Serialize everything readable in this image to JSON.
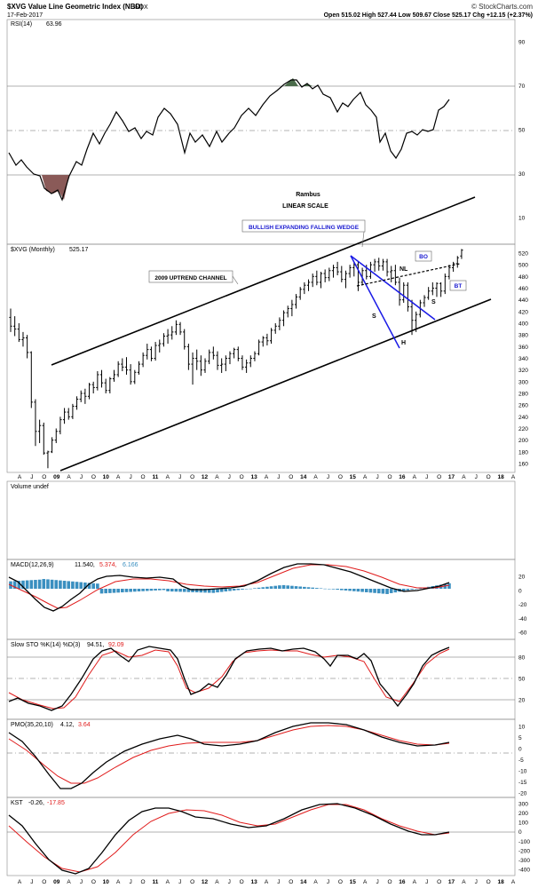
{
  "header": {
    "symbol_title": "$XVG Value Line Geometric Index (NBD)",
    "exchange": "INDX",
    "date": "17-Feb-2017",
    "quote": "Open 515.02  High 527.44  Low 509.67  Close 525.17  Chg +12.15 (+2.37%)",
    "quote_arrow": "▲",
    "brand": "© StockCharts.com"
  },
  "colors": {
    "price_bar": "#000000",
    "trendline": "#000000",
    "wedge": "#1a1ae6",
    "signal": "#e01b1b",
    "macd_hist": "#3a8fc0",
    "rsi_over": "#4a6b4a",
    "rsi_under": "#8a5a58",
    "grid": "#aaaaaa",
    "annotation_text": "#1a1ad0"
  },
  "panels": {
    "rsi": {
      "label": "RSI(14)",
      "value": "63.96",
      "ticks": [
        "90",
        "70",
        "50",
        "30",
        "10"
      ]
    },
    "price": {
      "label": "$XVG (Monthly)",
      "value": "525.17",
      "ticks": [
        "520",
        "500",
        "480",
        "460",
        "440",
        "420",
        "400",
        "380",
        "360",
        "340",
        "320",
        "300",
        "280",
        "260",
        "240",
        "220",
        "200",
        "180",
        "160"
      ]
    },
    "volume": {
      "label": "Volume undef"
    },
    "macd": {
      "label": "MACD(12,26,9)",
      "v1": "11.540,",
      "v2": "5.374,",
      "v3": "6.166",
      "ticks": [
        "20",
        "0",
        "-20",
        "-40",
        "-60"
      ]
    },
    "sto": {
      "label": "Slow STO %K(14) %D(3)",
      "v1": "94.51,",
      "v2": "92.09",
      "ticks": [
        "80",
        "50",
        "20"
      ]
    },
    "pmo": {
      "label": "PMO(35,20,10)",
      "v1": "4.12,",
      "v2": "3.64",
      "ticks": [
        "10",
        "5",
        "0",
        "-5",
        "-10",
        "-15",
        "-20"
      ]
    },
    "kst": {
      "label": "KST",
      "v1": "-0.26,",
      "v2": "-17.85",
      "ticks": [
        "300",
        "200",
        "100",
        "0",
        "-100",
        "-200",
        "-300",
        "-400"
      ]
    }
  },
  "annotations": {
    "rambus": "Rambus",
    "linear": "LINEAR SCALE",
    "wedge": "BULLISH EXPANDING FALLING WEDGE",
    "channel": "2009 UPTREND CHANNEL",
    "nl": "NL",
    "s_left": "S",
    "h": "H",
    "s_right": "S",
    "bo": "BO",
    "bt": "BT"
  },
  "x_axis_labels": [
    "A",
    "J",
    "O",
    "09",
    "A",
    "J",
    "O",
    "10",
    "A",
    "J",
    "O",
    "11",
    "A",
    "J",
    "O",
    "12",
    "A",
    "J",
    "O",
    "13",
    "A",
    "J",
    "O",
    "14",
    "A",
    "J",
    "O",
    "15",
    "A",
    "J",
    "O",
    "16",
    "A",
    "J",
    "O",
    "17",
    "A",
    "J",
    "O",
    "18",
    "A"
  ],
  "chart_data": {
    "type": "bar",
    "interval": "monthly",
    "x_start": "2008-04",
    "x_end": "2018-04",
    "price": {
      "ylim": [
        150,
        530
      ],
      "bars": [
        [
          410,
          425,
          385,
          395
        ],
        [
          395,
          412,
          378,
          390
        ],
        [
          390,
          400,
          368,
          372
        ],
        [
          372,
          385,
          360,
          375
        ],
        [
          375,
          380,
          340,
          350
        ],
        [
          350,
          352,
          255,
          265
        ],
        [
          265,
          270,
          190,
          215
        ],
        [
          215,
          235,
          195,
          225
        ],
        [
          225,
          230,
          175,
          178
        ],
        [
          178,
          182,
          152,
          180
        ],
        [
          180,
          205,
          178,
          200
        ],
        [
          200,
          220,
          195,
          215
        ],
        [
          215,
          240,
          210,
          235
        ],
        [
          235,
          255,
          228,
          248
        ],
        [
          248,
          255,
          235,
          240
        ],
        [
          240,
          262,
          236,
          258
        ],
        [
          258,
          275,
          252,
          270
        ],
        [
          270,
          285,
          265,
          280
        ],
        [
          280,
          288,
          262,
          275
        ],
        [
          275,
          298,
          270,
          295
        ],
        [
          295,
          300,
          280,
          290
        ],
        [
          290,
          318,
          285,
          312
        ],
        [
          312,
          320,
          290,
          298
        ],
        [
          298,
          305,
          280,
          285
        ],
        [
          285,
          308,
          280,
          305
        ],
        [
          305,
          320,
          300,
          312
        ],
        [
          312,
          335,
          308,
          330
        ],
        [
          330,
          340,
          318,
          325
        ],
        [
          325,
          342,
          312,
          320
        ],
        [
          320,
          330,
          295,
          300
        ],
        [
          300,
          320,
          296,
          316
        ],
        [
          316,
          335,
          312,
          330
        ],
        [
          330,
          350,
          325,
          345
        ],
        [
          345,
          365,
          338,
          355
        ],
        [
          355,
          360,
          335,
          340
        ],
        [
          340,
          368,
          336,
          362
        ],
        [
          362,
          372,
          350,
          365
        ],
        [
          365,
          383,
          360,
          378
        ],
        [
          378,
          390,
          365,
          380
        ],
        [
          380,
          395,
          372,
          385
        ],
        [
          385,
          405,
          380,
          398
        ],
        [
          398,
          402,
          380,
          385
        ],
        [
          385,
          390,
          355,
          360
        ],
        [
          360,
          365,
          320,
          330
        ],
        [
          330,
          350,
          295,
          340
        ],
        [
          340,
          355,
          320,
          335
        ],
        [
          335,
          345,
          310,
          320
        ],
        [
          320,
          340,
          315,
          335
        ],
        [
          335,
          355,
          330,
          350
        ],
        [
          350,
          360,
          338,
          345
        ],
        [
          345,
          352,
          320,
          328
        ],
        [
          328,
          340,
          315,
          330
        ],
        [
          330,
          345,
          318,
          340
        ],
        [
          340,
          352,
          330,
          348
        ],
        [
          348,
          358,
          340,
          355
        ],
        [
          355,
          360,
          335,
          340
        ],
        [
          340,
          345,
          320,
          325
        ],
        [
          325,
          338,
          315,
          332
        ],
        [
          332,
          345,
          325,
          340
        ],
        [
          340,
          352,
          335,
          348
        ],
        [
          348,
          372,
          345,
          368
        ],
        [
          368,
          378,
          360,
          375
        ],
        [
          375,
          382,
          362,
          370
        ],
        [
          370,
          392,
          365,
          388
        ],
        [
          388,
          400,
          382,
          395
        ],
        [
          395,
          410,
          388,
          405
        ],
        [
          405,
          422,
          395,
          418
        ],
        [
          418,
          430,
          410,
          425
        ],
        [
          425,
          440,
          412,
          432
        ],
        [
          432,
          450,
          425,
          445
        ],
        [
          445,
          462,
          440,
          458
        ],
        [
          458,
          470,
          450,
          465
        ],
        [
          465,
          475,
          455,
          470
        ],
        [
          470,
          485,
          462,
          480
        ],
        [
          480,
          490,
          465,
          470
        ],
        [
          470,
          488,
          460,
          485
        ],
        [
          485,
          492,
          470,
          478
        ],
        [
          478,
          495,
          472,
          490
        ],
        [
          490,
          500,
          478,
          495
        ],
        [
          495,
          505,
          482,
          488
        ],
        [
          488,
          498,
          470,
          475
        ],
        [
          475,
          490,
          460,
          485
        ],
        [
          485,
          500,
          478,
          495
        ],
        [
          495,
          505,
          480,
          500
        ],
        [
          500,
          505,
          455,
          470
        ],
        [
          470,
          495,
          465,
          490
        ],
        [
          490,
          500,
          475,
          480
        ],
        [
          480,
          505,
          476,
          500
        ],
        [
          500,
          510,
          488,
          505
        ],
        [
          505,
          512,
          490,
          498
        ],
        [
          498,
          510,
          490,
          505
        ],
        [
          505,
          510,
          480,
          488
        ],
        [
          488,
          498,
          470,
          490
        ],
        [
          490,
          500,
          465,
          470
        ],
        [
          470,
          478,
          430,
          440
        ],
        [
          440,
          470,
          435,
          465
        ],
        [
          465,
          470,
          420,
          428
        ],
        [
          428,
          440,
          380,
          405
        ],
        [
          405,
          420,
          385,
          415
        ],
        [
          415,
          440,
          410,
          435
        ],
        [
          435,
          448,
          428,
          444
        ],
        [
          444,
          462,
          440,
          455
        ],
        [
          455,
          470,
          448,
          460
        ],
        [
          460,
          470,
          445,
          468
        ],
        [
          468,
          470,
          445,
          455
        ],
        [
          455,
          485,
          450,
          480
        ],
        [
          480,
          500,
          475,
          495
        ],
        [
          495,
          505,
          488,
          502
        ],
        [
          502,
          515,
          495,
          512
        ],
        [
          515,
          527,
          510,
          525
        ]
      ],
      "indicator_range": [
        0,
        100
      ]
    },
    "rsi": {
      "ylim": [
        0,
        100
      ],
      "reference_lines": [
        70,
        50,
        30
      ]
    },
    "macd": {
      "ylim": [
        -65,
        35
      ],
      "reference_lines": [
        0
      ]
    },
    "stochastic": {
      "ylim": [
        0,
        100
      ],
      "reference_lines": [
        80,
        50,
        20
      ]
    },
    "pmo": {
      "ylim": [
        -22,
        14
      ],
      "reference_lines": [
        0
      ]
    },
    "kst": {
      "ylim": [
        -420,
        340
      ],
      "reference_lines": [
        0
      ]
    }
  }
}
